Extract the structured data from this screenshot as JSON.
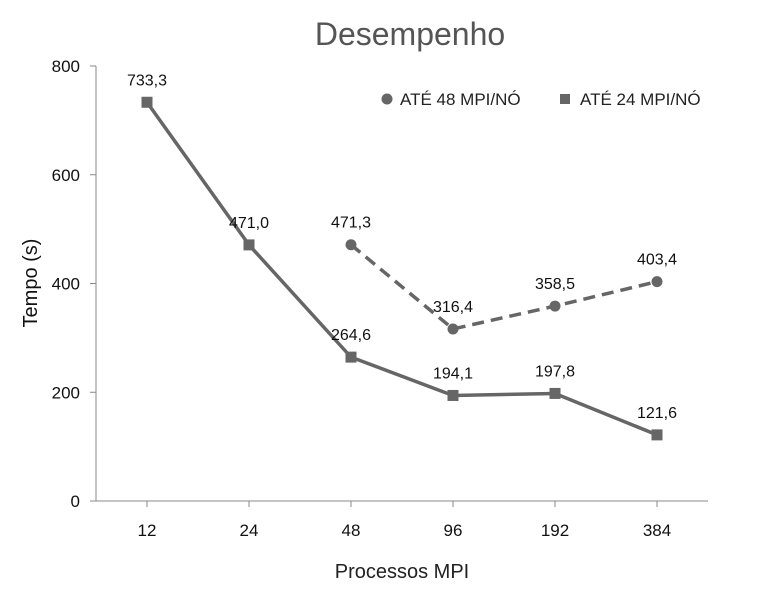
{
  "chart_data": {
    "type": "line",
    "title": "Desempenho",
    "xlabel": "Processos MPI",
    "ylabel": "Tempo (s)",
    "categories": [
      "12",
      "24",
      "48",
      "96",
      "192",
      "384"
    ],
    "ylim": [
      0,
      800
    ],
    "yticks": [
      "0",
      "200",
      "400",
      "600",
      "800"
    ],
    "legend_position": "top-right",
    "grid": false,
    "series": [
      {
        "name": "ATÉ 48 MPI/NÓ",
        "marker": "circle",
        "line_style": "dashed",
        "color": "#666666",
        "values": [
          null,
          null,
          471.3,
          316.4,
          358.5,
          403.4
        ],
        "labels": [
          null,
          null,
          "471,3",
          "316,4",
          "358,5",
          "403,4"
        ]
      },
      {
        "name": "ATÉ 24 MPI/NÓ",
        "marker": "square",
        "line_style": "solid",
        "color": "#666666",
        "values": [
          733.3,
          471.0,
          264.6,
          194.1,
          197.8,
          121.6
        ],
        "labels": [
          "733,3",
          "471,0",
          "264,6",
          "194,1",
          "197,8",
          "121,6"
        ]
      }
    ]
  }
}
